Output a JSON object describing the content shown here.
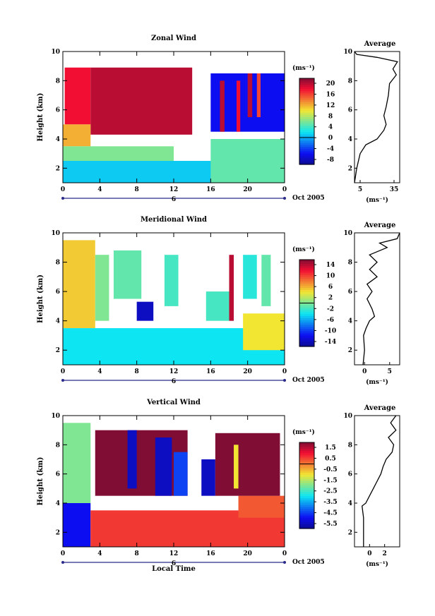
{
  "figure": {
    "date_label": "Oct 2005",
    "time_axis_label": "Local Time",
    "day_marker": "6"
  },
  "chart_data": [
    {
      "type": "heatmap",
      "title": "Zonal Wind",
      "ylabel": "Height (km)",
      "xlabel": "",
      "x_ticks": [
        "0",
        "4",
        "8",
        "12",
        "16",
        "20",
        "0"
      ],
      "xlim": [
        0,
        24
      ],
      "y_ticks": [
        "2",
        "4",
        "6",
        "8",
        "10"
      ],
      "ylim": [
        1,
        10
      ],
      "colorbar": {
        "unit": "(ms⁻¹)",
        "ticks": [
          "20",
          "16",
          "12",
          "8",
          "4",
          "0",
          "-4",
          "-8"
        ],
        "range": [
          -10,
          22
        ]
      },
      "regions": [
        {
          "x": [
            0.2,
            3.0
          ],
          "y": [
            5.0,
            8.9
          ],
          "value": 18
        },
        {
          "x": [
            3.0,
            14.0
          ],
          "y": [
            4.3,
            8.9
          ],
          "value": 20
        },
        {
          "x": [
            0.0,
            3.0
          ],
          "y": [
            3.5,
            5.0
          ],
          "value": 12
        },
        {
          "x": [
            0.0,
            12.0
          ],
          "y": [
            2.5,
            3.5
          ],
          "value": 6
        },
        {
          "x": [
            0.0,
            18.0
          ],
          "y": [
            1.0,
            2.5
          ],
          "value": 1
        },
        {
          "x": [
            16.0,
            24.0
          ],
          "y": [
            1.0,
            4.0
          ],
          "value": 5
        },
        {
          "x": [
            16.0,
            24.0
          ],
          "y": [
            4.5,
            8.5
          ],
          "value": -6
        },
        {
          "x": [
            17.0,
            17.5
          ],
          "y": [
            4.5,
            8.0
          ],
          "value": 20
        },
        {
          "x": [
            18.8,
            19.2
          ],
          "y": [
            4.5,
            8.0
          ],
          "value": 18
        },
        {
          "x": [
            20.0,
            20.5
          ],
          "y": [
            5.5,
            8.5
          ],
          "value": 20
        },
        {
          "x": [
            21.0,
            21.4
          ],
          "y": [
            5.5,
            8.5
          ],
          "value": 16
        }
      ],
      "average_profile": {
        "title": "Average",
        "xlabel": "(ms⁻¹)",
        "x_ticks": [
          "5",
          "35"
        ],
        "xlim": [
          0,
          40
        ],
        "y_ticks": [
          "2",
          "4",
          "6",
          "8",
          "10"
        ],
        "ylim": [
          1,
          10
        ],
        "points": [
          [
            0,
            1.0
          ],
          [
            2,
            2.0
          ],
          [
            5,
            3.0
          ],
          [
            10,
            3.6
          ],
          [
            20,
            4.0
          ],
          [
            26,
            4.6
          ],
          [
            28,
            5.0
          ],
          [
            26,
            5.6
          ],
          [
            28,
            6.2
          ],
          [
            30,
            7.0
          ],
          [
            31,
            7.8
          ],
          [
            37,
            8.4
          ],
          [
            34,
            8.8
          ],
          [
            38,
            9.3
          ],
          [
            20,
            9.6
          ],
          [
            2,
            9.8
          ],
          [
            0,
            10.0
          ]
        ]
      }
    },
    {
      "type": "heatmap",
      "title": "Meridional Wind",
      "ylabel": "Height (km)",
      "xlabel": "",
      "x_ticks": [
        "0",
        "4",
        "8",
        "12",
        "16",
        "20",
        "0"
      ],
      "xlim": [
        0,
        24
      ],
      "y_ticks": [
        "2",
        "4",
        "6",
        "8",
        "10"
      ],
      "ylim": [
        1,
        10
      ],
      "colorbar": {
        "unit": "(ms⁻¹)",
        "ticks": [
          "14",
          "10",
          "6",
          "2",
          "-2",
          "-6",
          "-10",
          "-14"
        ],
        "range": [
          -16,
          16
        ]
      },
      "regions": [
        {
          "x": [
            0.0,
            3.5
          ],
          "y": [
            3.5,
            9.5
          ],
          "value": 5
        },
        {
          "x": [
            0.0,
            24.0
          ],
          "y": [
            1.0,
            3.5
          ],
          "value": -4
        },
        {
          "x": [
            3.5,
            5.0
          ],
          "y": [
            4.0,
            8.5
          ],
          "value": 0
        },
        {
          "x": [
            5.5,
            8.5
          ],
          "y": [
            5.5,
            8.8
          ],
          "value": -1
        },
        {
          "x": [
            8.0,
            9.8
          ],
          "y": [
            4.0,
            5.3
          ],
          "value": -14
        },
        {
          "x": [
            11.0,
            12.5
          ],
          "y": [
            5.0,
            8.5
          ],
          "value": -2
        },
        {
          "x": [
            15.5,
            18.0
          ],
          "y": [
            4.0,
            6.0
          ],
          "value": -2
        },
        {
          "x": [
            18.0,
            18.5
          ],
          "y": [
            4.0,
            8.5
          ],
          "value": 14
        },
        {
          "x": [
            19.5,
            21.0
          ],
          "y": [
            5.5,
            8.5
          ],
          "value": -3
        },
        {
          "x": [
            21.5,
            22.5
          ],
          "y": [
            5.0,
            8.5
          ],
          "value": -1
        },
        {
          "x": [
            19.5,
            24.0
          ],
          "y": [
            2.0,
            4.5
          ],
          "value": 4
        }
      ],
      "average_profile": {
        "title": "Average",
        "xlabel": "(ms⁻¹)",
        "x_ticks": [
          "0",
          "5"
        ],
        "xlim": [
          -2,
          7
        ],
        "y_ticks": [
          "2",
          "4",
          "6",
          "8",
          "10"
        ],
        "ylim": [
          1,
          10
        ],
        "points": [
          [
            -0.3,
            1.0
          ],
          [
            0.0,
            2.0
          ],
          [
            -0.2,
            3.0
          ],
          [
            0.3,
            3.5
          ],
          [
            1.0,
            4.0
          ],
          [
            2.0,
            4.3
          ],
          [
            1.5,
            4.8
          ],
          [
            0.5,
            5.5
          ],
          [
            1.5,
            6.0
          ],
          [
            0.5,
            6.5
          ],
          [
            2.5,
            7.0
          ],
          [
            1.0,
            7.5
          ],
          [
            2.5,
            8.0
          ],
          [
            1.0,
            8.5
          ],
          [
            4.5,
            9.0
          ],
          [
            3.0,
            9.3
          ],
          [
            6.5,
            9.6
          ],
          [
            7.0,
            10.0
          ]
        ]
      }
    },
    {
      "type": "heatmap",
      "title": "Vertical Wind",
      "ylabel": "Height (km)",
      "xlabel": "Local Time",
      "x_ticks": [
        "0",
        "4",
        "8",
        "12",
        "16",
        "20",
        "0"
      ],
      "xlim": [
        0,
        24
      ],
      "y_ticks": [
        "2",
        "4",
        "6",
        "8",
        "10"
      ],
      "ylim": [
        1,
        10
      ],
      "colorbar": {
        "unit": "(ms⁻¹)",
        "ticks": [
          "1.5",
          "0.5",
          "-0.5",
          "-1.5",
          "-2.5",
          "-3.5",
          "-4.5",
          "-5.5"
        ],
        "range": [
          -6,
          2
        ]
      },
      "regions": [
        {
          "x": [
            0.0,
            3.0
          ],
          "y": [
            4.0,
            9.5
          ],
          "value": -2
        },
        {
          "x": [
            0.0,
            3.0
          ],
          "y": [
            1.0,
            4.0
          ],
          "value": -5
        },
        {
          "x": [
            3.0,
            24.0
          ],
          "y": [
            1.0,
            3.5
          ],
          "value": 0.6
        },
        {
          "x": [
            19.0,
            24.0
          ],
          "y": [
            3.0,
            4.5
          ],
          "value": 0.3
        },
        {
          "x": [
            3.5,
            13.5
          ],
          "y": [
            4.5,
            9.0
          ],
          "value": 2
        },
        {
          "x": [
            7.0,
            8.0
          ],
          "y": [
            5.0,
            9.0
          ],
          "value": -5.5
        },
        {
          "x": [
            10.0,
            11.8
          ],
          "y": [
            4.5,
            8.5
          ],
          "value": -5.5
        },
        {
          "x": [
            12.0,
            13.5
          ],
          "y": [
            4.5,
            7.5
          ],
          "value": -4.5
        },
        {
          "x": [
            15.0,
            16.5
          ],
          "y": [
            4.5,
            7.0
          ],
          "value": -5.5
        },
        {
          "x": [
            16.5,
            23.5
          ],
          "y": [
            4.5,
            8.8
          ],
          "value": 2
        },
        {
          "x": [
            18.5,
            19.0
          ],
          "y": [
            5.0,
            8.0
          ],
          "value": -1
        }
      ],
      "average_profile": {
        "title": "Average",
        "xlabel": "(ms⁻¹)",
        "x_ticks": [
          "0",
          "2"
        ],
        "xlim": [
          -2,
          4
        ],
        "y_ticks": [
          "2",
          "4",
          "6",
          "8",
          "10"
        ],
        "ylim": [
          1,
          10
        ],
        "points": [
          [
            -0.8,
            1.0
          ],
          [
            -0.8,
            3.0
          ],
          [
            -1.0,
            3.8
          ],
          [
            -0.5,
            4.0
          ],
          [
            0.0,
            4.5
          ],
          [
            0.5,
            5.0
          ],
          [
            1.0,
            5.5
          ],
          [
            1.5,
            6.0
          ],
          [
            1.8,
            6.5
          ],
          [
            2.2,
            7.0
          ],
          [
            3.0,
            7.5
          ],
          [
            3.2,
            8.0
          ],
          [
            2.5,
            8.5
          ],
          [
            3.5,
            9.0
          ],
          [
            2.8,
            9.5
          ],
          [
            3.5,
            10.0
          ]
        ]
      }
    }
  ]
}
